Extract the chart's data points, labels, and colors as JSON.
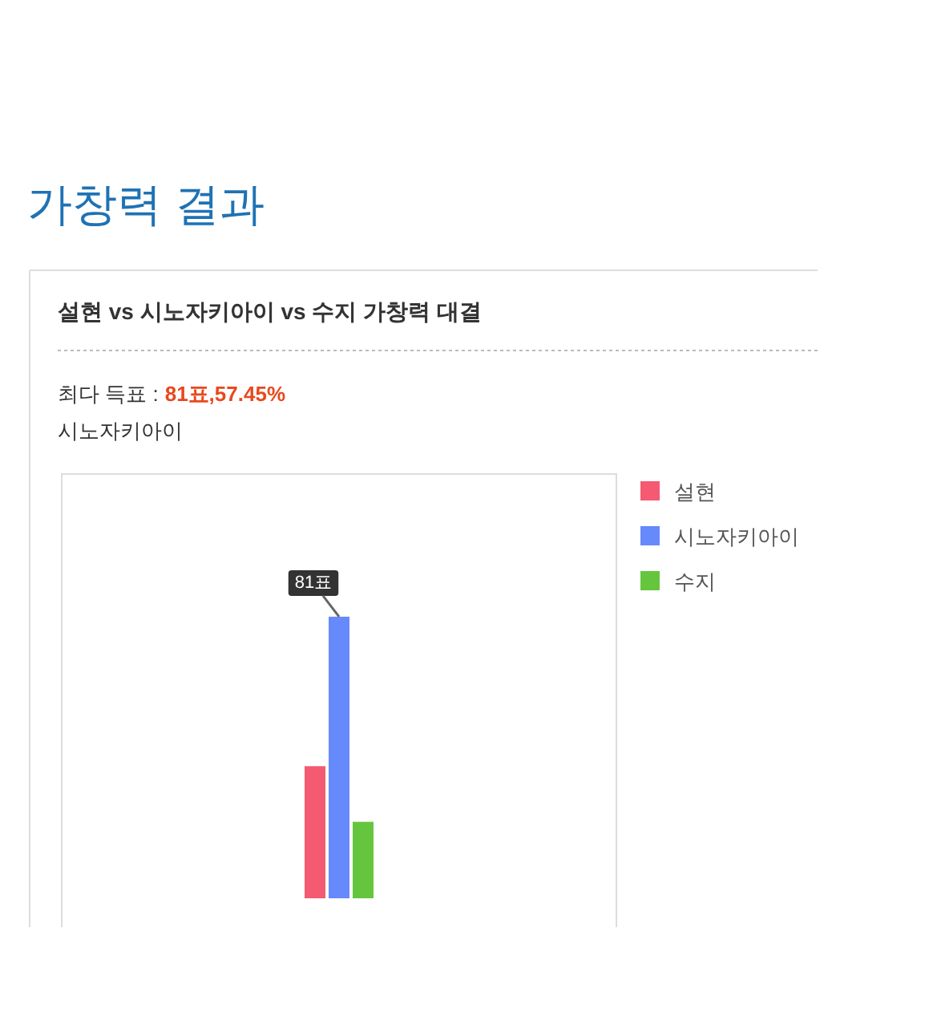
{
  "chart_data": {
    "type": "bar",
    "title": "가창력 결과",
    "subtitle": "설현 vs 시노자키아이 vs 수지 가창력 대결",
    "annotations": [
      "최다 득표 :",
      "81표,57.45%",
      "시노자키아이"
    ],
    "categories": [
      null
    ],
    "series": [
      {
        "name": "설현",
        "color": "#f45a72",
        "values": [
          38
        ]
      },
      {
        "name": "시노자키아이",
        "color": "#6689fb",
        "values": [
          81
        ],
        "value_labels": [
          "81표"
        ]
      },
      {
        "name": "수지",
        "color": "#65c63e",
        "values": [
          22
        ]
      }
    ],
    "legend": "top right"
  }
}
